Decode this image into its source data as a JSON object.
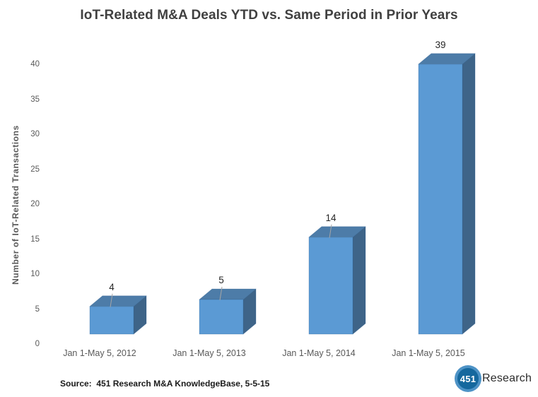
{
  "chart_data": {
    "type": "bar",
    "style": "3d-column",
    "title": "IoT-Related M&A Deals YTD vs. Same Period in Prior Years",
    "ylabel": "Number of IoT-Related Transactions",
    "xlabel": "",
    "categories": [
      "Jan 1-May 5, 2012",
      "Jan 1-May 5, 2013",
      "Jan 1-May 5, 2014",
      "Jan 1-May 5, 2015"
    ],
    "values": [
      4,
      5,
      14,
      39
    ],
    "data_labels": [
      "4",
      "5",
      "14",
      "39"
    ],
    "y_ticks": [
      0,
      5,
      10,
      15,
      20,
      25,
      30,
      35,
      40
    ],
    "ylim": [
      0,
      40
    ],
    "grid": false,
    "legend": false,
    "colors": {
      "bar_front": "#5B9AD4",
      "bar_top": "#4D7CA8",
      "bar_side": "#3E6488",
      "bar_edge": "#2F5E8E",
      "leader_line": "#A6A6A6",
      "axis_text": "#595959",
      "data_label_text": "#262626",
      "title_text": "#404040"
    }
  },
  "source_note": "Source:  451 Research M&A KnowledgeBase, 5-5-15",
  "logo": {
    "circle_text": "451",
    "name": "Research",
    "circle_color": "#15689E",
    "ring_color": "#4E93C6"
  }
}
